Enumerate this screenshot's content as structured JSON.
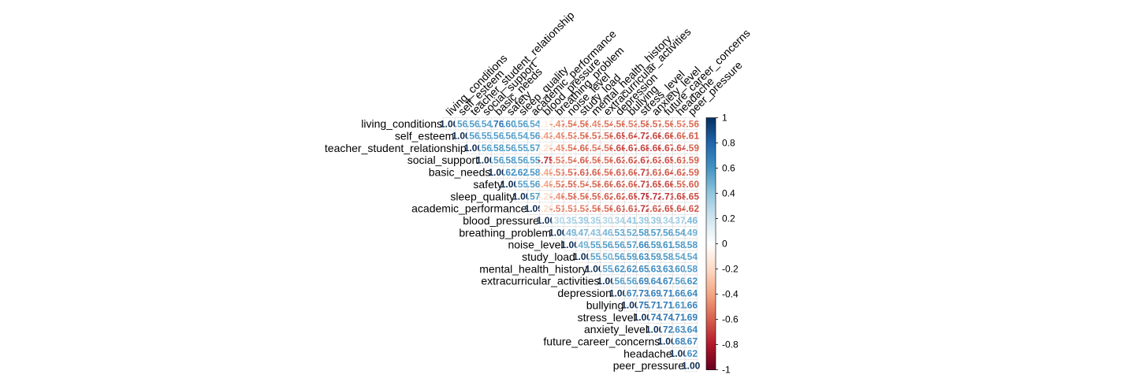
{
  "chart_data": {
    "type": "heatmap",
    "subtype": "correlation-upper-triangle",
    "variables": [
      "living_conditions",
      "self_esteem",
      "teacher_student_relationship",
      "social_support",
      "basic_needs",
      "safety",
      "sleep_quality",
      "academic_performance",
      "blood_pressure",
      "breathing_problem",
      "noise_level",
      "study_load",
      "mental_health_history",
      "extracurricular_activities",
      "depression",
      "bullying",
      "stress_level",
      "anxiety_level",
      "future_career_concerns",
      "headache",
      "peer_pressure"
    ],
    "matrix": [
      [
        1.0,
        0.56,
        0.56,
        0.54,
        0.76,
        0.6,
        0.56,
        0.54,
        -0.1,
        -0.47,
        -0.54,
        -0.56,
        -0.49,
        -0.54,
        -0.56,
        -0.53,
        -0.58,
        -0.57,
        -0.56,
        -0.53,
        -0.56
      ],
      [
        0.56,
        1.0,
        0.56,
        0.55,
        0.56,
        0.56,
        0.54,
        0.56,
        -0.43,
        -0.49,
        -0.53,
        -0.56,
        -0.57,
        -0.56,
        -0.65,
        -0.64,
        -0.72,
        -0.66,
        -0.66,
        -0.6,
        -0.61
      ],
      [
        0.56,
        0.56,
        1.0,
        0.56,
        0.58,
        0.56,
        0.55,
        0.57,
        -0.2,
        -0.45,
        -0.54,
        -0.6,
        -0.54,
        -0.56,
        -0.66,
        -0.67,
        -0.68,
        -0.66,
        -0.67,
        -0.64,
        -0.59
      ],
      [
        0.54,
        0.55,
        0.56,
        1.0,
        0.56,
        0.58,
        0.56,
        0.55,
        -0.75,
        -0.53,
        -0.54,
        -0.6,
        -0.56,
        -0.56,
        -0.63,
        -0.62,
        -0.67,
        -0.63,
        -0.65,
        -0.61,
        -0.59
      ],
      [
        0.76,
        0.56,
        0.58,
        0.56,
        1.0,
        0.62,
        0.62,
        0.58,
        -0.4,
        -0.51,
        -0.57,
        -0.61,
        -0.6,
        -0.56,
        -0.61,
        -0.6,
        -0.71,
        -0.61,
        -0.64,
        -0.62,
        -0.59
      ],
      [
        0.6,
        0.56,
        0.56,
        0.58,
        0.62,
        1.0,
        0.55,
        0.56,
        -0.4,
        -0.52,
        -0.59,
        -0.54,
        -0.58,
        -0.6,
        -0.63,
        -0.6,
        -0.71,
        -0.65,
        -0.66,
        -0.59,
        -0.6
      ],
      [
        0.56,
        0.54,
        0.55,
        0.56,
        0.62,
        0.55,
        1.0,
        0.57,
        -0.2,
        -0.46,
        -0.58,
        -0.56,
        -0.59,
        -0.62,
        -0.62,
        -0.65,
        -0.75,
        -0.72,
        -0.71,
        -0.68,
        -0.65
      ],
      [
        0.54,
        0.56,
        0.57,
        0.55,
        0.58,
        0.56,
        0.57,
        1.0,
        -0.2,
        -0.51,
        -0.51,
        -0.53,
        -0.56,
        -0.56,
        -0.61,
        -0.61,
        -0.72,
        -0.62,
        -0.65,
        -0.64,
        -0.62
      ],
      [
        -0.1,
        -0.43,
        -0.2,
        -0.75,
        -0.4,
        -0.4,
        -0.2,
        -0.2,
        1.0,
        0.3,
        0.35,
        0.39,
        0.35,
        0.3,
        0.34,
        0.41,
        0.39,
        0.39,
        0.34,
        0.37,
        0.46
      ],
      [
        -0.47,
        -0.49,
        -0.45,
        -0.53,
        -0.51,
        -0.52,
        -0.46,
        -0.51,
        0.3,
        1.0,
        0.49,
        0.47,
        0.43,
        0.46,
        0.53,
        0.52,
        0.58,
        0.57,
        0.56,
        0.54,
        0.49
      ],
      [
        -0.54,
        -0.53,
        -0.54,
        -0.54,
        -0.57,
        -0.59,
        -0.58,
        -0.51,
        0.35,
        0.49,
        1.0,
        0.49,
        0.55,
        0.56,
        0.56,
        0.57,
        0.66,
        0.59,
        0.61,
        0.58,
        0.58
      ],
      [
        -0.56,
        -0.56,
        -0.6,
        -0.6,
        -0.61,
        -0.54,
        -0.56,
        -0.53,
        0.39,
        0.47,
        0.49,
        1.0,
        0.55,
        0.5,
        0.56,
        0.59,
        0.63,
        0.59,
        0.58,
        0.54,
        0.54
      ],
      [
        -0.49,
        -0.57,
        -0.54,
        -0.56,
        -0.6,
        -0.58,
        -0.59,
        -0.56,
        0.35,
        0.43,
        0.55,
        0.55,
        1.0,
        0.55,
        0.62,
        0.62,
        0.65,
        0.63,
        0.63,
        0.6,
        0.58
      ],
      [
        -0.54,
        -0.56,
        -0.56,
        -0.56,
        -0.56,
        -0.6,
        -0.62,
        -0.56,
        0.3,
        0.46,
        0.56,
        0.5,
        0.55,
        1.0,
        0.56,
        0.56,
        0.69,
        0.64,
        0.67,
        0.56,
        0.62
      ],
      [
        -0.56,
        -0.65,
        -0.66,
        -0.63,
        -0.61,
        -0.63,
        -0.62,
        -0.61,
        0.34,
        0.53,
        0.56,
        0.56,
        0.62,
        0.56,
        1.0,
        0.67,
        0.73,
        0.69,
        0.71,
        0.66,
        0.64
      ],
      [
        -0.53,
        -0.64,
        -0.67,
        -0.62,
        -0.6,
        -0.6,
        -0.65,
        -0.61,
        0.41,
        0.52,
        0.57,
        0.59,
        0.62,
        0.56,
        0.67,
        1.0,
        0.75,
        0.71,
        0.71,
        0.61,
        0.66
      ],
      [
        -0.58,
        -0.72,
        -0.68,
        -0.67,
        -0.71,
        -0.71,
        -0.75,
        -0.72,
        0.39,
        0.58,
        0.66,
        0.63,
        0.65,
        0.69,
        0.73,
        0.75,
        1.0,
        0.74,
        0.74,
        0.71,
        0.69
      ],
      [
        -0.57,
        -0.66,
        -0.66,
        -0.63,
        -0.61,
        -0.65,
        -0.72,
        -0.62,
        0.39,
        0.57,
        0.59,
        0.59,
        0.63,
        0.64,
        0.69,
        0.71,
        0.74,
        1.0,
        0.72,
        0.63,
        0.64
      ],
      [
        -0.56,
        -0.66,
        -0.67,
        -0.65,
        -0.64,
        -0.66,
        -0.71,
        -0.65,
        0.34,
        0.56,
        0.61,
        0.58,
        0.63,
        0.67,
        0.71,
        0.71,
        0.74,
        0.72,
        1.0,
        0.68,
        0.67
      ],
      [
        -0.53,
        -0.6,
        -0.64,
        -0.61,
        -0.62,
        -0.59,
        -0.68,
        -0.64,
        0.37,
        0.54,
        0.58,
        0.54,
        0.6,
        0.56,
        0.66,
        0.61,
        0.71,
        0.63,
        0.68,
        1.0,
        0.62
      ],
      [
        -0.56,
        -0.61,
        -0.59,
        -0.59,
        -0.59,
        -0.6,
        -0.65,
        -0.62,
        0.46,
        0.49,
        0.58,
        0.54,
        0.58,
        0.62,
        0.64,
        0.66,
        0.69,
        0.64,
        0.67,
        0.62,
        1.0
      ]
    ],
    "color_scale": {
      "range": [
        -1,
        1
      ],
      "colors": [
        "#67001F",
        "#B2182B",
        "#D6604D",
        "#F4A582",
        "#FDDBC7",
        "#FFFFFF",
        "#D1E5F0",
        "#92C5DE",
        "#4393C3",
        "#2166AC",
        "#053061"
      ],
      "ticks": [
        1,
        0.8,
        0.6,
        0.4,
        0.2,
        0,
        -0.2,
        -0.4,
        -0.6,
        -0.8,
        -1
      ]
    },
    "value_format": "2 decimals, leading zero dropped except 1.00",
    "legend_position": "right"
  }
}
